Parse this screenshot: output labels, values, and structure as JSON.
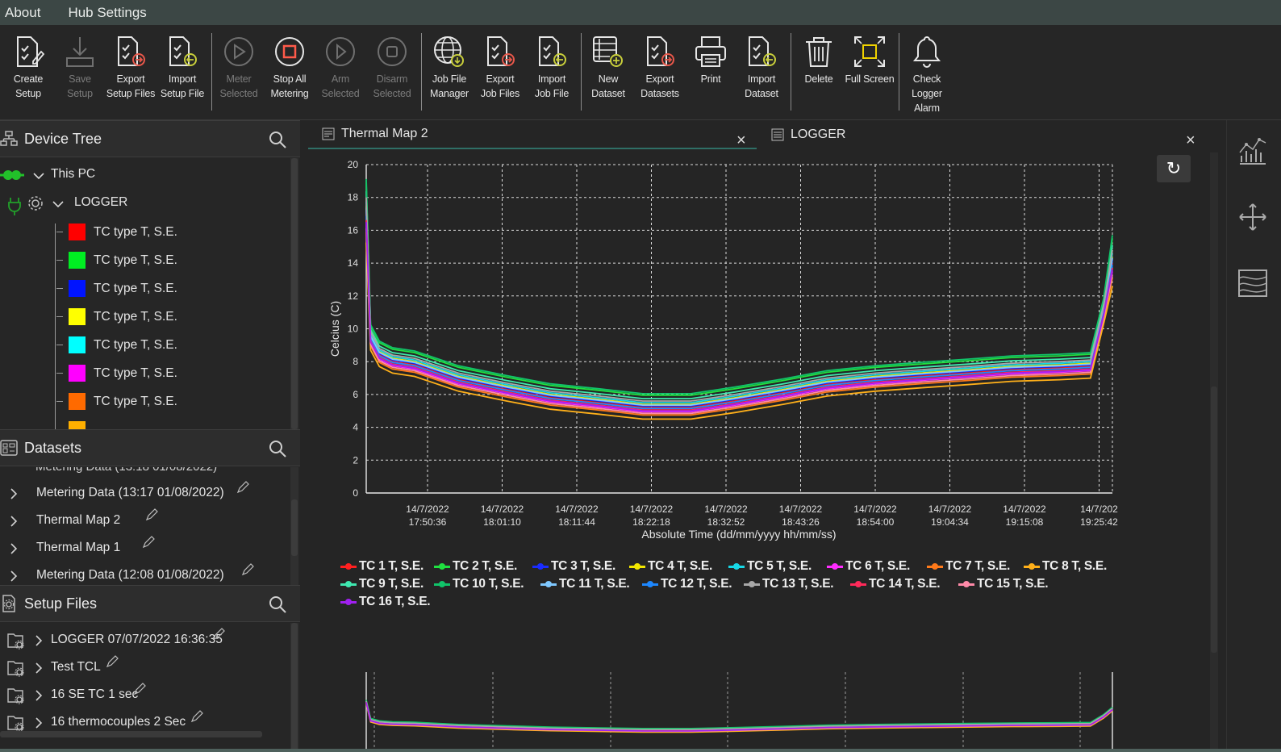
{
  "menu": [
    "About",
    "Hub Settings"
  ],
  "toolbar": {
    "buttons": [
      {
        "label": "Create\nSetup",
        "icon": "create-setup-icon",
        "enabled": true
      },
      {
        "label": "Save\nSetup",
        "icon": "save-setup-icon",
        "enabled": false
      },
      {
        "label": "Export\nSetup Files",
        "icon": "export-setup-files-icon",
        "enabled": true
      },
      {
        "label": "Import\nSetup File",
        "icon": "import-setup-file-icon",
        "enabled": true
      },
      {
        "label": "Meter\nSelected",
        "icon": "meter-selected-icon",
        "enabled": false
      },
      {
        "label": "Stop All\nMetering",
        "icon": "stop-all-metering-icon",
        "enabled": true
      },
      {
        "label": "Arm\nSelected",
        "icon": "arm-selected-icon",
        "enabled": false
      },
      {
        "label": "Disarm\nSelected",
        "icon": "disarm-selected-icon",
        "enabled": false
      },
      {
        "label": "Job File\nManager",
        "icon": "job-file-manager-icon",
        "enabled": true
      },
      {
        "label": "Export\nJob Files",
        "icon": "export-job-files-icon",
        "enabled": true
      },
      {
        "label": "Import\nJob File",
        "icon": "import-job-file-icon",
        "enabled": true
      },
      {
        "label": "New\nDataset",
        "icon": "new-dataset-icon",
        "enabled": true
      },
      {
        "label": "Export\nDatasets",
        "icon": "export-datasets-icon",
        "enabled": true
      },
      {
        "label": "Print",
        "icon": "print-icon",
        "enabled": true
      },
      {
        "label": "Import\nDataset",
        "icon": "import-dataset-icon",
        "enabled": true
      },
      {
        "label": "Delete",
        "icon": "delete-icon",
        "enabled": true
      },
      {
        "label": "Full Screen",
        "icon": "full-screen-icon",
        "enabled": true
      },
      {
        "label": "Check\nLogger\nAlarm",
        "icon": "bell-icon",
        "enabled": true
      }
    ]
  },
  "device_tree": {
    "title": "Device Tree",
    "root": "This PC",
    "device": "LOGGER",
    "channels": [
      {
        "label": "TC type T, S.E.",
        "color": "#ff0000"
      },
      {
        "label": "TC type T, S.E.",
        "color": "#00ee22"
      },
      {
        "label": "TC type T, S.E.",
        "color": "#0014ff"
      },
      {
        "label": "TC type T, S.E.",
        "color": "#ffff00"
      },
      {
        "label": "TC type T, S.E.",
        "color": "#00ffff"
      },
      {
        "label": "TC type T, S.E.",
        "color": "#ff00ff"
      },
      {
        "label": "TC type T, S.E.",
        "color": "#ff6a00"
      },
      {
        "label": "",
        "color": "#ffb000"
      }
    ]
  },
  "datasets": {
    "title": "Datasets",
    "items": [
      "Metering Data (13:17 01/08/2022)",
      "Thermal Map 2",
      "Thermal Map 1",
      "Metering Data (12:08 01/08/2022)"
    ]
  },
  "setup_files": {
    "title": "Setup Files",
    "items": [
      "LOGGER 07/07/2022 16:36:35",
      "Test TCL",
      "16 SE TC 1 sec",
      "16 thermocouples 2 Sec"
    ]
  },
  "tabs": [
    {
      "label": "Thermal Map 2",
      "active": true
    },
    {
      "label": "LOGGER",
      "active": false
    }
  ],
  "chart_data": {
    "type": "line",
    "title": "",
    "xlabel": "Absolute Time (dd/mm/yyyy hh/mm/ss)",
    "ylabel": "Celcius (C)",
    "ylim": [
      0,
      20
    ],
    "yticks": [
      0,
      2,
      4,
      6,
      8,
      10,
      12,
      14,
      16,
      18,
      20
    ],
    "xticks": [
      {
        "date": "14/7/2022",
        "time": "17:50:36"
      },
      {
        "date": "14/7/2022",
        "time": "18:01:10"
      },
      {
        "date": "14/7/2022",
        "time": "18:11:44"
      },
      {
        "date": "14/7/2022",
        "time": "18:22:18"
      },
      {
        "date": "14/7/2022",
        "time": "18:32:52"
      },
      {
        "date": "14/7/2022",
        "time": "18:43:26"
      },
      {
        "date": "14/7/2022",
        "time": "18:54:00"
      },
      {
        "date": "14/7/2022",
        "time": "19:04:34"
      },
      {
        "date": "14/7/2022",
        "time": "19:15:08"
      },
      {
        "date": "14/7/202",
        "time": "19:25:42"
      }
    ],
    "x_minutes": [
      0,
      1,
      3,
      6,
      11,
      21,
      32,
      42,
      53,
      63,
      74,
      84,
      95,
      105,
      116,
      126,
      137,
      147,
      158,
      165,
      168,
      170
    ],
    "base_profile": [
      17,
      9.4,
      8.4,
      8.0,
      7.8,
      6.9,
      6.3,
      5.8,
      5.5,
      5.2,
      5.2,
      5.6,
      6.1,
      6.6,
      6.9,
      7.1,
      7.3,
      7.5,
      7.6,
      7.7,
      11,
      14
    ],
    "grid": true,
    "legend_position": "bottom",
    "series": [
      {
        "name": "TC 1 T, S.E.",
        "color": "#ff2020",
        "offset": 0.0
      },
      {
        "name": "TC 2 T, S.E.",
        "color": "#20e040",
        "offset": 0.75
      },
      {
        "name": "TC 3 T, S.E.",
        "color": "#1a2cff",
        "offset": 0.1
      },
      {
        "name": "TC 4 T, S.E.",
        "color": "#f2e600",
        "offset": 0.2
      },
      {
        "name": "TC 5 T, S.E.",
        "color": "#17d8e6",
        "offset": 0.3
      },
      {
        "name": "TC 6 T, S.E.",
        "color": "#ff2cff",
        "offset": -0.25
      },
      {
        "name": "TC 7 T, S.E.",
        "color": "#ff7a1a",
        "offset": -0.45
      },
      {
        "name": "TC 8 T, S.E.",
        "color": "#ffb01a",
        "offset": -0.7
      },
      {
        "name": "TC 9 T, S.E.",
        "color": "#3fe8b0",
        "offset": 0.55
      },
      {
        "name": "TC 10 T, S.E.",
        "color": "#11c46a",
        "offset": 0.85
      },
      {
        "name": "TC 11 T, S.E.",
        "color": "#7fc8ff",
        "offset": 0.15
      },
      {
        "name": "TC 12 T, S.E.",
        "color": "#1e88ff",
        "offset": -0.05
      },
      {
        "name": "TC  13 T, S.E.",
        "color": "#a8a8a8",
        "offset": 0.4
      },
      {
        "name": "TC 14  T, S.E.",
        "color": "#ff2a5a",
        "offset": -0.15
      },
      {
        "name": "TC 15 T, S.E.",
        "color": "#ff8aa8",
        "offset": -0.35
      },
      {
        "name": "TC 16 T, S.E.",
        "color": "#a020f0",
        "offset": -0.2
      }
    ]
  }
}
